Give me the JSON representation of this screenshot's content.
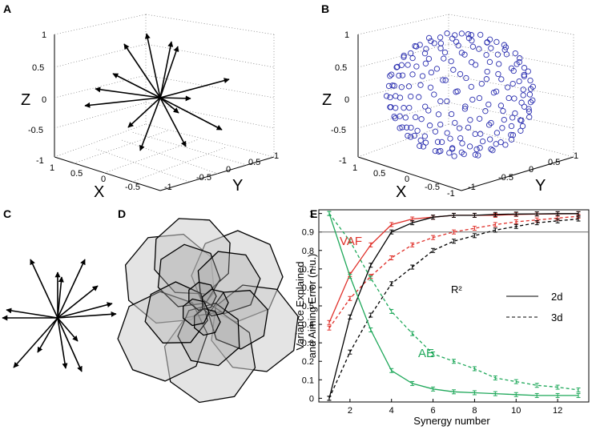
{
  "panels": {
    "a": {
      "letter": "A",
      "ticks_z": [
        "1",
        "0.5",
        "0",
        "-0.5",
        "-1"
      ],
      "ticks_x": [
        "1",
        "0.5",
        "0",
        "-0.5"
      ],
      "ticks_y": [
        "-1",
        "-0.5",
        "0",
        "0.5",
        "1"
      ],
      "axis_x": "X",
      "axis_y": "Y",
      "axis_z": "Z"
    },
    "b": {
      "letter": "B",
      "ticks_z": [
        "1",
        "0.5",
        "0",
        "-0.5",
        "-1"
      ],
      "ticks_x": [
        "1",
        "0.5",
        "0",
        "-0.5",
        "-1"
      ],
      "ticks_y": [
        "-1",
        "-0.5",
        "0",
        "0.5",
        "1"
      ],
      "axis_x": "X",
      "axis_y": "Y",
      "axis_z": "Z"
    },
    "c": {
      "letter": "C"
    },
    "d": {
      "letter": "D"
    },
    "e": {
      "letter": "E"
    }
  },
  "colors": {
    "vaf": "#e0302a",
    "ae": "#1fa85a",
    "r2": "#000000"
  },
  "chart_data": {
    "type": "line",
    "xlabel": "Synergy number",
    "ylabel_line1": "Variance Explained",
    "ylabel_line2": "and Aiming Error (n.u.)",
    "xlim": [
      0.5,
      13.5
    ],
    "ylim": [
      -0.02,
      1.02
    ],
    "x_ticks": [
      2,
      4,
      6,
      8,
      10,
      12
    ],
    "y_ticks": [
      0,
      0.1,
      0.2,
      0.3,
      0.4,
      0.5,
      0.6,
      0.7,
      0.8,
      0.9,
      1
    ],
    "y_tick_labels": [
      "0",
      "0.1",
      "0.2",
      "0.3",
      "0.4",
      "0.5",
      "0.6",
      "0.7",
      "0.8",
      "0.9",
      "1"
    ],
    "x_tick_labels": [
      "2",
      "4",
      "6",
      "8",
      "10",
      "12"
    ],
    "threshold": 0.9,
    "x": [
      1,
      2,
      3,
      4,
      5,
      6,
      7,
      8,
      9,
      10,
      11,
      12,
      13
    ],
    "series": [
      {
        "name": "VAF 2d",
        "metric": "VAF",
        "dim": "2d",
        "color": "#e0302a",
        "dash": false,
        "values": [
          0.41,
          0.67,
          0.83,
          0.94,
          0.97,
          0.98,
          0.99,
          0.99,
          0.99,
          0.995,
          0.997,
          0.998,
          0.999
        ]
      },
      {
        "name": "VAF 3d",
        "metric": "VAF",
        "dim": "3d",
        "color": "#e0302a",
        "dash": true,
        "values": [
          0.38,
          0.54,
          0.66,
          0.76,
          0.83,
          0.87,
          0.9,
          0.92,
          0.94,
          0.955,
          0.965,
          0.975,
          0.985
        ]
      },
      {
        "name": "R2 2d",
        "metric": "R2",
        "dim": "2d",
        "color": "#000000",
        "dash": false,
        "values": [
          0.0,
          0.44,
          0.72,
          0.9,
          0.95,
          0.98,
          0.99,
          0.99,
          0.995,
          0.997,
          0.998,
          0.999,
          0.999
        ]
      },
      {
        "name": "R2 3d",
        "metric": "R2",
        "dim": "3d",
        "color": "#000000",
        "dash": true,
        "values": [
          0.0,
          0.25,
          0.45,
          0.62,
          0.71,
          0.8,
          0.85,
          0.88,
          0.91,
          0.93,
          0.95,
          0.96,
          0.97
        ]
      },
      {
        "name": "AE 2d",
        "metric": "AE",
        "dim": "2d",
        "color": "#1fa85a",
        "dash": false,
        "values": [
          1.0,
          0.66,
          0.37,
          0.15,
          0.08,
          0.05,
          0.035,
          0.03,
          0.025,
          0.02,
          0.015,
          0.015,
          0.015
        ]
      },
      {
        "name": "AE 3d",
        "metric": "AE",
        "dim": "3d",
        "color": "#1fa85a",
        "dash": true,
        "values": [
          1.0,
          0.85,
          0.65,
          0.47,
          0.35,
          0.24,
          0.2,
          0.16,
          0.11,
          0.09,
          0.07,
          0.06,
          0.045
        ]
      }
    ],
    "labels": {
      "vaf": "VAF",
      "ae": "AE",
      "r2": "R²"
    },
    "legend": [
      {
        "label": "2d",
        "dash": false
      },
      {
        "label": "3d",
        "dash": true
      }
    ]
  }
}
